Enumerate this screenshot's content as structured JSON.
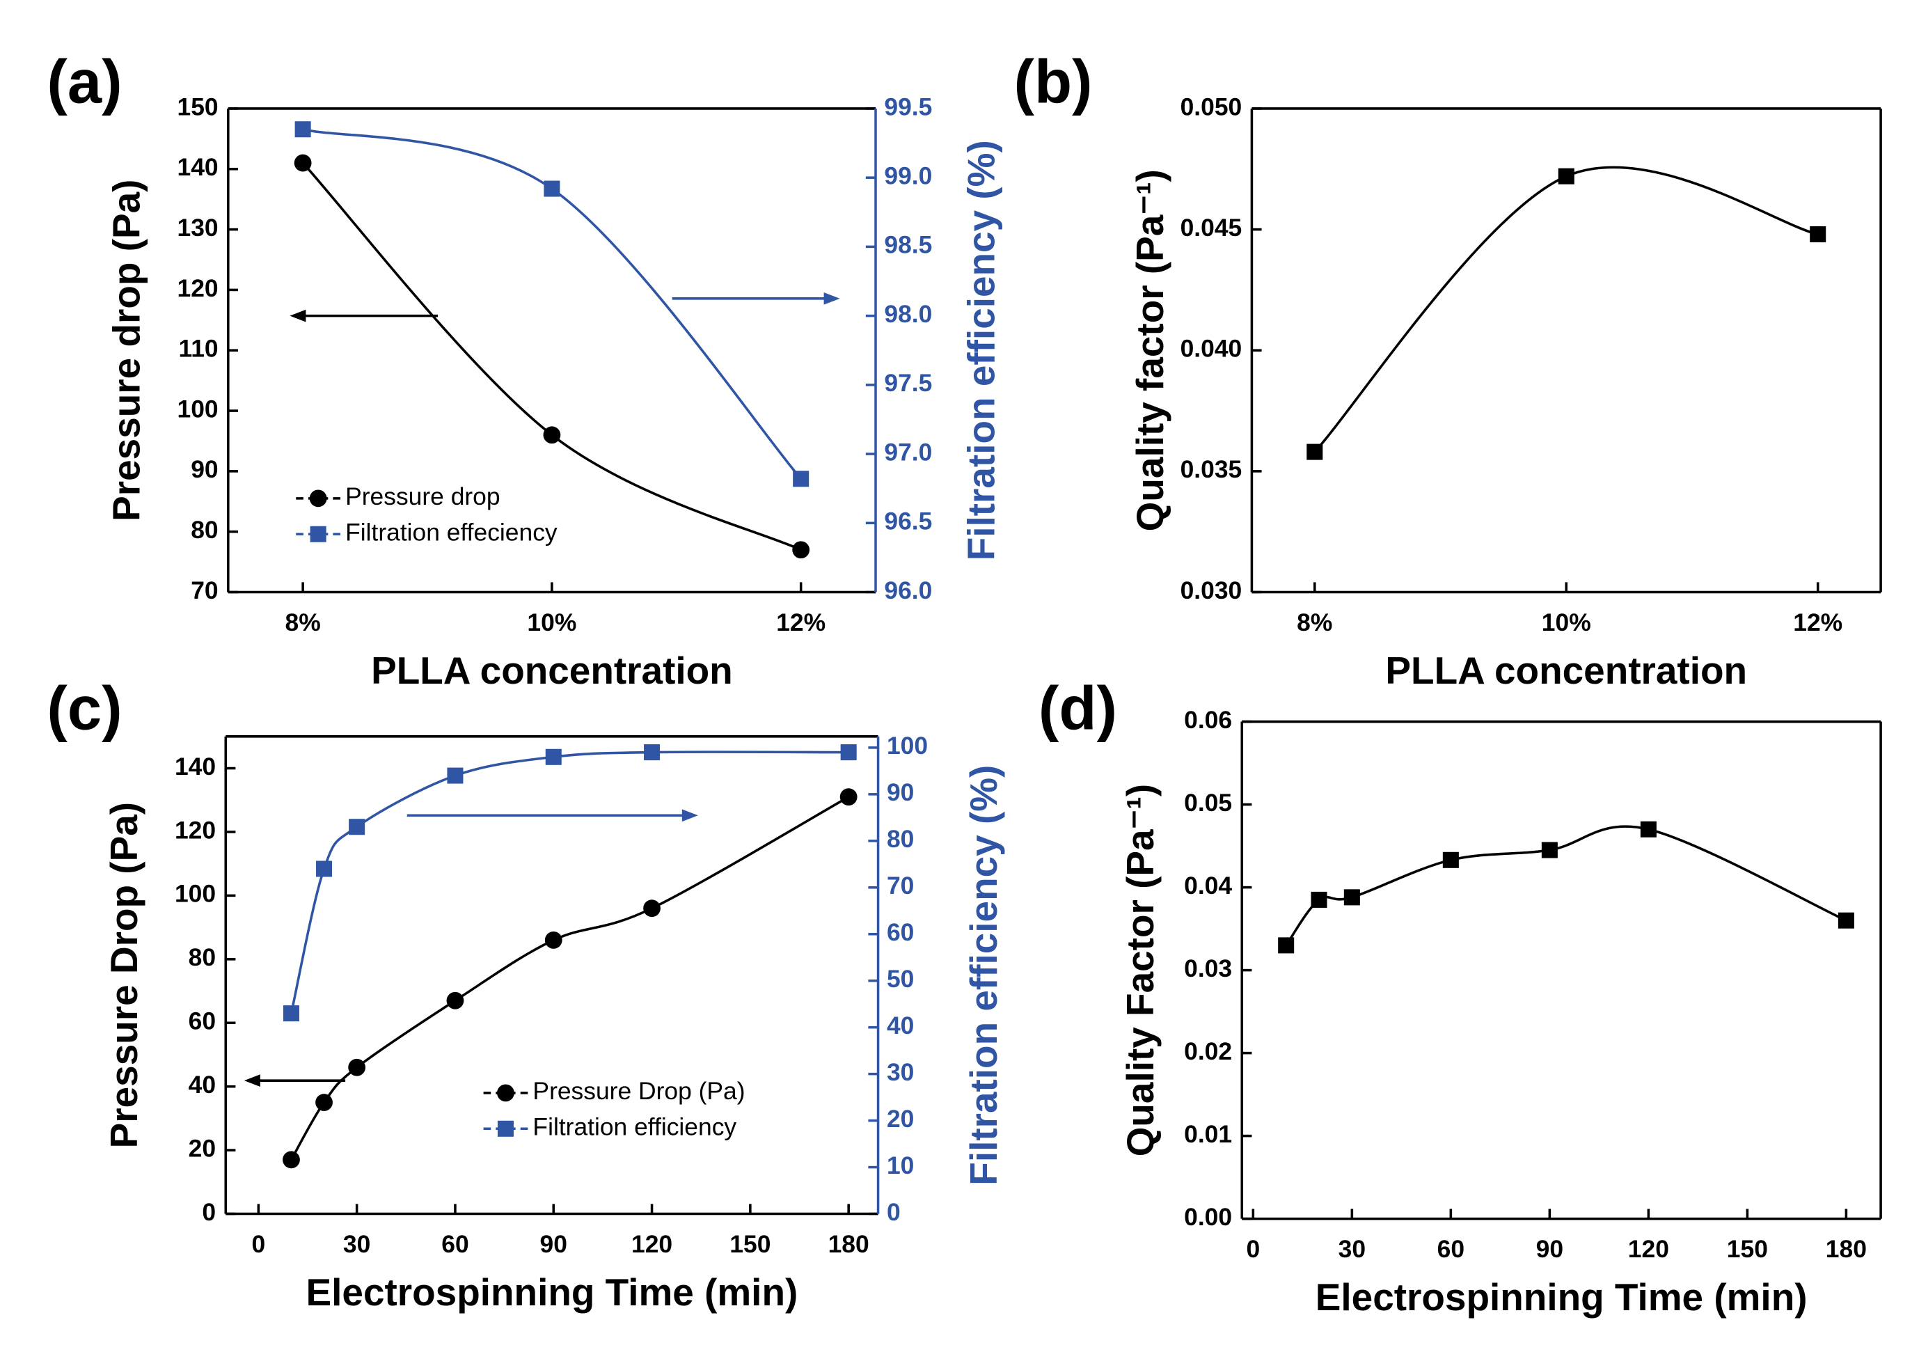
{
  "chart_data": [
    {
      "type": "line",
      "panel": "(a)",
      "xlabel": "PLLA concentration",
      "ylabel": "Pressure drop (Pa)",
      "y2label": "Filtration efficiency (%)",
      "categories": [
        "8%",
        "10%",
        "12%"
      ],
      "series": [
        {
          "name": "Pressure drop",
          "color": "#000000",
          "marker": "circle",
          "values": [
            141,
            96,
            77
          ]
        },
        {
          "name": "Filtration effeciency",
          "color": "#2f55a4",
          "marker": "square",
          "axis": "y2",
          "values": [
            99.35,
            98.92,
            96.82
          ]
        }
      ],
      "ylim": [
        70,
        150
      ],
      "yticks": [
        70,
        80,
        90,
        100,
        110,
        120,
        130,
        140,
        150
      ],
      "y2lim": [
        96,
        99.5
      ],
      "y2ticks": [
        {
          "value": 96,
          "label": "96.0"
        },
        96.5,
        {
          "value": 97,
          "label": "97.0"
        },
        97.5,
        {
          "value": 98,
          "label": "98.0"
        },
        98.5,
        {
          "value": 99,
          "label": "99.0"
        },
        99.5
      ],
      "y2color": "#2f55a4",
      "legend": true
    },
    {
      "type": "line",
      "panel": "(b)",
      "xlabel": "PLLA concentration",
      "ylabel": "Quality factor (Pa⁻¹)",
      "categories": [
        "8%",
        "10%",
        "12%"
      ],
      "series": [
        {
          "color": "#000000",
          "marker": "square",
          "values": [
            0.0358,
            0.0472,
            0.0448
          ]
        }
      ],
      "ylim": [
        0.03,
        0.05
      ],
      "yticks": [
        {
          "value": 0.03,
          "label": "0.030"
        },
        0.035,
        {
          "value": 0.04,
          "label": "0.040"
        },
        0.045,
        {
          "value": 0.05,
          "label": "0.050"
        }
      ],
      "legend": false
    },
    {
      "type": "line",
      "panel": "(c)",
      "xlabel": "Electrospinning Time (min)",
      "ylabel": "Pressure Drop (Pa)",
      "y2label": "Filtration efficiency (%)",
      "x": [
        10,
        20,
        30,
        60,
        90,
        120,
        180
      ],
      "series": [
        {
          "name": "Pressure Drop (Pa)",
          "color": "#000000",
          "marker": "circle",
          "values": [
            17,
            35,
            46,
            67,
            86,
            96,
            131
          ]
        },
        {
          "name": "Filtration efficiency",
          "color": "#2f55a4",
          "marker": "square",
          "axis": "y2",
          "values": [
            43,
            74,
            83,
            94,
            98,
            99,
            99
          ]
        }
      ],
      "xlim": [
        -10,
        189
      ],
      "xticks": [
        0,
        30,
        60,
        90,
        120,
        150,
        180
      ],
      "ylim": [
        0,
        150
      ],
      "yticks": [
        0,
        20,
        40,
        60,
        80,
        100,
        120,
        140
      ],
      "y2lim": [
        0,
        102.4
      ],
      "y2ticks": [
        0,
        10,
        20,
        30,
        40,
        50,
        60,
        70,
        80,
        90,
        100
      ],
      "y2color": "#2f55a4",
      "legend": true
    },
    {
      "type": "line",
      "panel": "(d)",
      "xlabel": "Electrospinning Time (min)",
      "ylabel": "Quality Factor (Pa⁻¹)",
      "x": [
        10,
        20,
        30,
        60,
        90,
        120,
        180
      ],
      "series": [
        {
          "color": "#000000",
          "marker": "square",
          "values": [
            0.033,
            0.0385,
            0.0388,
            0.0433,
            0.0445,
            0.047,
            0.036
          ]
        }
      ],
      "xlim": [
        -3.4,
        190.5
      ],
      "xticks": [
        0,
        30,
        60,
        90,
        120,
        150,
        180
      ],
      "ylim": [
        0,
        0.06
      ],
      "yticks": [
        {
          "value": 0,
          "label": "0.00"
        },
        0.01,
        0.02,
        0.03,
        0.04,
        0.05,
        0.06
      ],
      "legend": false
    }
  ]
}
